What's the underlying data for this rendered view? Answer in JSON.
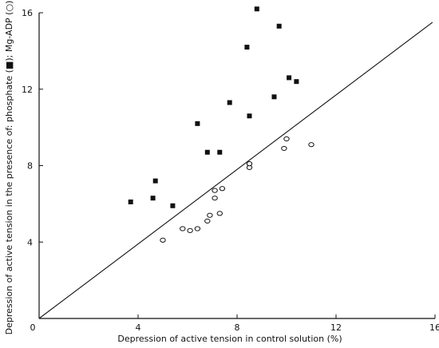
{
  "chart_data": {
    "type": "scatter",
    "xlabel": "Depression of active tension in control solution (%)",
    "ylabel": "Depression of active tension in the presence of: phosphate (■); Mg-ADP (○)",
    "xlim": [
      0,
      16
    ],
    "ylim": [
      0,
      16
    ],
    "x_ticks": [
      "0",
      "4",
      "8",
      "12",
      "16"
    ],
    "y_ticks": [
      "4",
      "8",
      "12",
      "16"
    ],
    "grid": false,
    "series": [
      {
        "name": "phosphate",
        "marker": "filled-square",
        "points": [
          [
            3.7,
            6.1
          ],
          [
            4.6,
            6.3
          ],
          [
            4.7,
            7.2
          ],
          [
            5.4,
            5.9
          ],
          [
            6.4,
            10.2
          ],
          [
            6.8,
            8.7
          ],
          [
            7.3,
            8.7
          ],
          [
            7.7,
            11.3
          ],
          [
            8.4,
            14.2
          ],
          [
            8.5,
            10.6
          ],
          [
            8.8,
            16.2
          ],
          [
            9.5,
            11.6
          ],
          [
            9.7,
            15.3
          ],
          [
            10.1,
            12.6
          ],
          [
            10.4,
            12.4
          ]
        ]
      },
      {
        "name": "Mg-ADP",
        "marker": "open-circle",
        "points": [
          [
            5.0,
            4.1
          ],
          [
            5.8,
            4.7
          ],
          [
            6.1,
            4.6
          ],
          [
            6.4,
            4.7
          ],
          [
            6.8,
            5.1
          ],
          [
            6.9,
            5.4
          ],
          [
            7.1,
            6.3
          ],
          [
            7.1,
            6.7
          ],
          [
            7.3,
            5.5
          ],
          [
            7.4,
            6.8
          ],
          [
            8.5,
            7.9
          ],
          [
            8.5,
            8.1
          ],
          [
            9.9,
            8.9
          ],
          [
            10.0,
            9.4
          ],
          [
            11.0,
            9.1
          ]
        ]
      }
    ],
    "reference_line": {
      "from": [
        0,
        0
      ],
      "to": [
        15.9,
        15.5
      ]
    }
  }
}
